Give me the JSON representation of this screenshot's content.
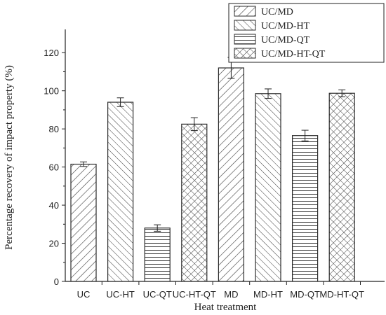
{
  "chart_data": {
    "type": "bar",
    "title": "",
    "xlabel": "Heat treatment",
    "ylabel": "Percentage recovery of impact property (%)",
    "ylim": [
      0,
      130
    ],
    "yticks": [
      0,
      20,
      40,
      60,
      80,
      100,
      120
    ],
    "categories": [
      "UC",
      "UC-HT",
      "UC-QT",
      "UC-HT-QT",
      "MD",
      "MD-HT",
      "MD-QT",
      "MD-HT-QT"
    ],
    "values": [
      61.5,
      94,
      28,
      82.5,
      112,
      98.5,
      76.5,
      98.7
    ],
    "errors": [
      1.2,
      2.3,
      1.7,
      3.4,
      5.5,
      2.5,
      2.8,
      1.8
    ],
    "patterns": [
      "fwd-diag",
      "back-diag",
      "horizontal",
      "crosshatch",
      "fwd-diag",
      "back-diag",
      "horizontal",
      "crosshatch"
    ],
    "legend": {
      "placement": "top-right",
      "entries": [
        {
          "label": "UC/MD",
          "pattern": "fwd-diag"
        },
        {
          "label": "UC/MD-HT",
          "pattern": "back-diag"
        },
        {
          "label": "UC/MD-QT",
          "pattern": "horizontal"
        },
        {
          "label": "UC/MD-HT-QT",
          "pattern": "crosshatch"
        }
      ]
    },
    "grid": false,
    "colors": {
      "bar_fill": "#ffffff",
      "bar_stroke": "#2b2b2b",
      "hatch": "#3a3a3a",
      "axis": "#222222",
      "text": "#222222"
    }
  }
}
